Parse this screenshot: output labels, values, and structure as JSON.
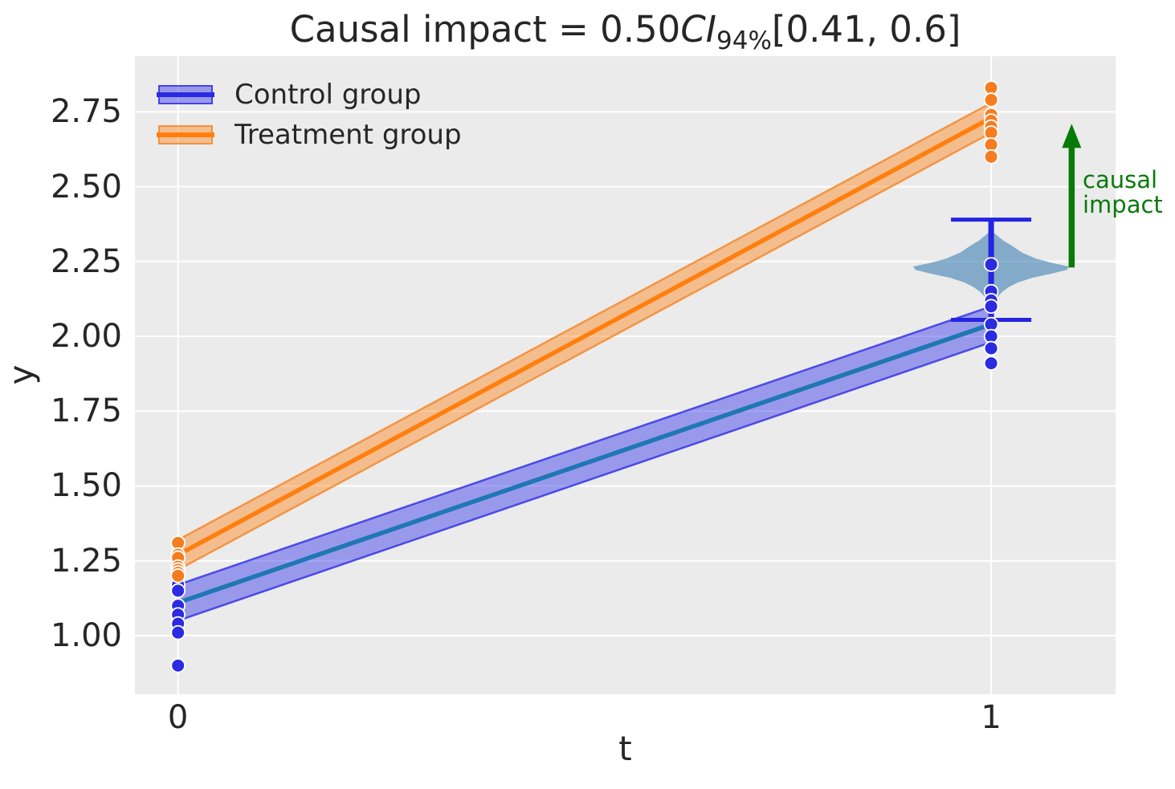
{
  "title": {
    "part1": "Causal impact = 0.50",
    "ci": "CI",
    "sub": "94%",
    "part2": "[0.41, 0.6]"
  },
  "axes": {
    "xlabel": "t",
    "ylabel": "y"
  },
  "legend": {
    "items": [
      {
        "label": "Control group"
      },
      {
        "label": "Treatment group"
      }
    ]
  },
  "annotation": {
    "line1": "causal",
    "line2": "impact"
  },
  "colors": {
    "figure_bg": "#ffffff",
    "axes_bg": "#ebebeb",
    "grid": "#ffffff",
    "text": "#262626",
    "control_scatter": "#2b2be1",
    "control_line": "#1f77b4",
    "control_band_fill": "rgba(40,40,235,0.42)",
    "control_band_edge": "rgba(45,45,230,0.80)",
    "treatment_scatter": "#f57d1f",
    "treatment_line": "#ff7f0e",
    "treatment_band_fill": "rgba(255,127,14,0.42)",
    "treatment_band_edge": "rgba(243,138,47,0.85)",
    "violin_fill": "rgba(70,130,180,0.62)",
    "errorbar": "#2424e2",
    "arrow": "#077a07",
    "arrow_text": "#0a7a0a"
  },
  "chart_data": {
    "type": "line",
    "title": "Causal impact = 0.50 CI 94% [0.41, 0.6]",
    "causal_impact": {
      "estimate": 0.5,
      "ci_level": "94%",
      "ci_lower": 0.41,
      "ci_upper": 0.6
    },
    "xlabel": "t",
    "ylabel": "y",
    "xlim": [
      -0.053,
      1.153
    ],
    "ylim": [
      0.804,
      2.936
    ],
    "grid": true,
    "legend_position": "upper left",
    "x_ticks": [
      0,
      1
    ],
    "x_tick_labels": [
      "0",
      "1"
    ],
    "y_ticks": [
      1.0,
      1.25,
      1.5,
      1.75,
      2.0,
      2.25,
      2.5,
      2.75
    ],
    "y_tick_labels": [
      "1.00",
      "1.25",
      "1.50",
      "1.75",
      "2.00",
      "2.25",
      "2.50",
      "2.75"
    ],
    "series": [
      {
        "name": "Control group",
        "line_x": [
          0,
          1
        ],
        "line_y": [
          1.11,
          2.04
        ],
        "band_upper": [
          1.17,
          2.1
        ],
        "band_lower": [
          1.05,
          1.98
        ],
        "scatter_t0": [
          1.23,
          1.17,
          1.15,
          1.1,
          1.07,
          1.04,
          1.01,
          0.9
        ],
        "scatter_t1": [
          2.24,
          2.15,
          2.12,
          2.1,
          2.04,
          2.0,
          1.96,
          1.91
        ]
      },
      {
        "name": "Treatment group",
        "line_x": [
          0,
          1
        ],
        "line_y": [
          1.27,
          2.73
        ],
        "band_upper": [
          1.32,
          2.78
        ],
        "band_lower": [
          1.22,
          2.68
        ],
        "scatter_t0": [
          1.31,
          1.27,
          1.26,
          1.23,
          1.22,
          1.21,
          1.2
        ],
        "scatter_t1": [
          2.83,
          2.79,
          2.74,
          2.72,
          2.7,
          2.68,
          2.64,
          2.6
        ]
      }
    ],
    "counterfactual": {
      "x": 1,
      "mean": 2.23,
      "errorbar_low": 2.055,
      "errorbar_high": 2.39,
      "violin_profile": [
        [
          2.355,
          0
        ],
        [
          2.34,
          0.006
        ],
        [
          2.32,
          0.015
        ],
        [
          2.3,
          0.027
        ],
        [
          2.28,
          0.038
        ],
        [
          2.26,
          0.055
        ],
        [
          2.245,
          0.075
        ],
        [
          2.233,
          0.096
        ],
        [
          2.222,
          0.093
        ],
        [
          2.21,
          0.075
        ],
        [
          2.195,
          0.05
        ],
        [
          2.18,
          0.033
        ],
        [
          2.165,
          0.022
        ],
        [
          2.15,
          0.014
        ],
        [
          2.135,
          0.009
        ],
        [
          2.12,
          0.005
        ],
        [
          2.11,
          0
        ]
      ]
    },
    "arrow": {
      "x": 1.099,
      "y_from": 2.23,
      "y_to": 2.71,
      "label": "causal impact"
    }
  }
}
